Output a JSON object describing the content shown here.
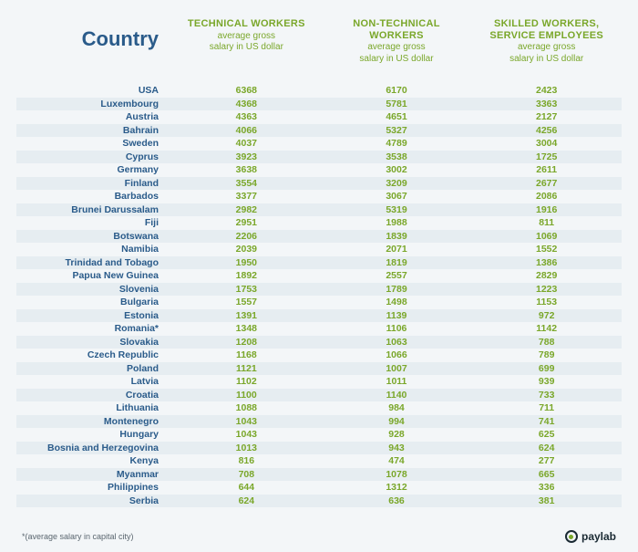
{
  "colors": {
    "accent_blue": "#2a5b8a",
    "accent_green": "#7aa72a",
    "row_alt_bg": "#e6edf1",
    "frame_bg": "#f3f6f8",
    "footnote": "#5a666f",
    "logo_dark": "#1a2a33"
  },
  "header": {
    "country_label": "Country",
    "columns": [
      {
        "main": "TECHNICAL WORKERS",
        "sub1": "average gross",
        "sub2": "salary in US dollar"
      },
      {
        "main": "NON-TECHNICAL WORKERS",
        "sub1": "average gross",
        "sub2": "salary in US dollar"
      },
      {
        "main": "SKILLED WORKERS, SERVICE EMPLOYEES",
        "sub1": "average gross",
        "sub2": "salary in US dollar"
      }
    ]
  },
  "rows": [
    {
      "country": "USA",
      "v": [
        "6368",
        "6170",
        "2423"
      ]
    },
    {
      "country": "Luxembourg",
      "v": [
        "4368",
        "5781",
        "3363"
      ]
    },
    {
      "country": "Austria",
      "v": [
        "4363",
        "4651",
        "2127"
      ]
    },
    {
      "country": "Bahrain",
      "v": [
        "4066",
        "5327",
        "4256"
      ]
    },
    {
      "country": "Sweden",
      "v": [
        "4037",
        "4789",
        "3004"
      ]
    },
    {
      "country": "Cyprus",
      "v": [
        "3923",
        "3538",
        "1725"
      ]
    },
    {
      "country": "Germany",
      "v": [
        "3638",
        "3002",
        "2611"
      ]
    },
    {
      "country": "Finland",
      "v": [
        "3554",
        "3209",
        "2677"
      ]
    },
    {
      "country": "Barbados",
      "v": [
        "3377",
        "3067",
        "2086"
      ]
    },
    {
      "country": "Brunei Darussalam",
      "v": [
        "2982",
        "5319",
        "1916"
      ]
    },
    {
      "country": "Fiji",
      "v": [
        "2951",
        "1988",
        "811"
      ]
    },
    {
      "country": "Botswana",
      "v": [
        "2206",
        "1839",
        "1069"
      ]
    },
    {
      "country": "Namibia",
      "v": [
        "2039",
        "2071",
        "1552"
      ]
    },
    {
      "country": "Trinidad and Tobago",
      "v": [
        "1950",
        "1819",
        "1386"
      ]
    },
    {
      "country": "Papua New Guinea",
      "v": [
        "1892",
        "2557",
        "2829"
      ]
    },
    {
      "country": "Slovenia",
      "v": [
        "1753",
        "1789",
        "1223"
      ]
    },
    {
      "country": "Bulgaria",
      "v": [
        "1557",
        "1498",
        "1153"
      ]
    },
    {
      "country": "Estonia",
      "v": [
        "1391",
        "1139",
        "972"
      ]
    },
    {
      "country": "Romania*",
      "v": [
        "1348",
        "1106",
        "1142"
      ]
    },
    {
      "country": "Slovakia",
      "v": [
        "1208",
        "1063",
        "788"
      ]
    },
    {
      "country": "Czech Republic",
      "v": [
        "1168",
        "1066",
        "789"
      ]
    },
    {
      "country": "Poland",
      "v": [
        "1121",
        "1007",
        "699"
      ]
    },
    {
      "country": "Latvia",
      "v": [
        "1102",
        "1011",
        "939"
      ]
    },
    {
      "country": "Croatia",
      "v": [
        "1100",
        "1140",
        "733"
      ]
    },
    {
      "country": "Lithuania",
      "v": [
        "1088",
        "984",
        "711"
      ]
    },
    {
      "country": "Montenegro",
      "v": [
        "1043",
        "994",
        "741"
      ]
    },
    {
      "country": "Hungary",
      "v": [
        "1043",
        "928",
        "625"
      ]
    },
    {
      "country": "Bosnia and Herzegovina",
      "v": [
        "1013",
        "943",
        "624"
      ]
    },
    {
      "country": "Kenya",
      "v": [
        "816",
        "474",
        "277"
      ]
    },
    {
      "country": "Myanmar",
      "v": [
        "708",
        "1078",
        "665"
      ]
    },
    {
      "country": "Philippines",
      "v": [
        "644",
        "1312",
        "336"
      ]
    },
    {
      "country": "Serbia",
      "v": [
        "624",
        "636",
        "381"
      ]
    }
  ],
  "footnote": "*(average salary in capital city)",
  "logo_text": "paylab"
}
